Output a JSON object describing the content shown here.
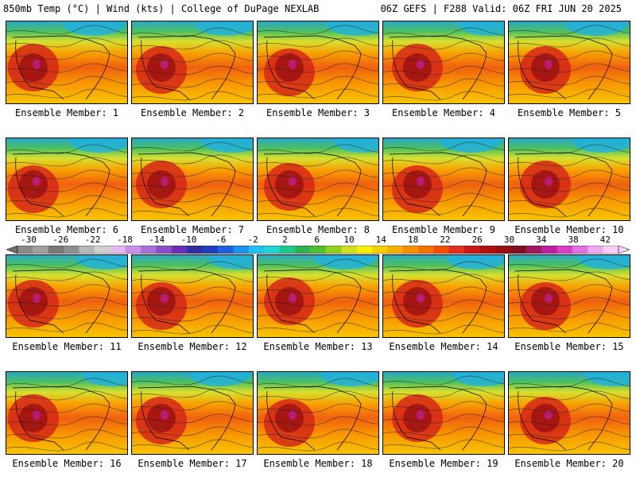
{
  "header": {
    "left": "850mb Temp (°C) | Wind (kts) | College of DuPage NEXLAB",
    "right": "06Z GEFS | F288 Valid: 06Z FRI JUN 20 2025"
  },
  "colorbar": {
    "ticks": [
      "-30",
      "-26",
      "-22",
      "-18",
      "-14",
      "-10",
      "-6",
      "-2",
      "2",
      "6",
      "10",
      "14",
      "18",
      "22",
      "26",
      "30",
      "34",
      "38",
      "42"
    ],
    "colors": [
      "#8a8a8a",
      "#a0a0a0",
      "#787878",
      "#909090",
      "#b8b8b8",
      "#d0d0d0",
      "#e8b8f0",
      "#c890e8",
      "#a870d8",
      "#8a50c8",
      "#6830b8",
      "#3030a0",
      "#2040c0",
      "#2060e0",
      "#2090f0",
      "#20c0f0",
      "#20d8d0",
      "#20c890",
      "#30b050",
      "#50c030",
      "#90d020",
      "#d0e020",
      "#f8f000",
      "#f8d000",
      "#f8b000",
      "#f89000",
      "#f87000",
      "#f05000",
      "#e03020",
      "#c81818",
      "#b01010",
      "#981010",
      "#801020",
      "#a01860",
      "#c020a0",
      "#d840c8",
      "#e070e0",
      "#f0a8f0",
      "#f8d0f8"
    ]
  },
  "panels": [
    "Ensemble Member: 1",
    "Ensemble Member: 2",
    "Ensemble Member: 3",
    "Ensemble Member: 4",
    "Ensemble Member: 5",
    "Ensemble Member: 6",
    "Ensemble Member: 7",
    "Ensemble Member: 8",
    "Ensemble Member: 9",
    "Ensemble Member: 10",
    "Ensemble Member: 11",
    "Ensemble Member: 12",
    "Ensemble Member: 13",
    "Ensemble Member: 14",
    "Ensemble Member: 15",
    "Ensemble Member: 16",
    "Ensemble Member: 17",
    "Ensemble Member: 18",
    "Ensemble Member: 19",
    "Ensemble Member: 20"
  ]
}
